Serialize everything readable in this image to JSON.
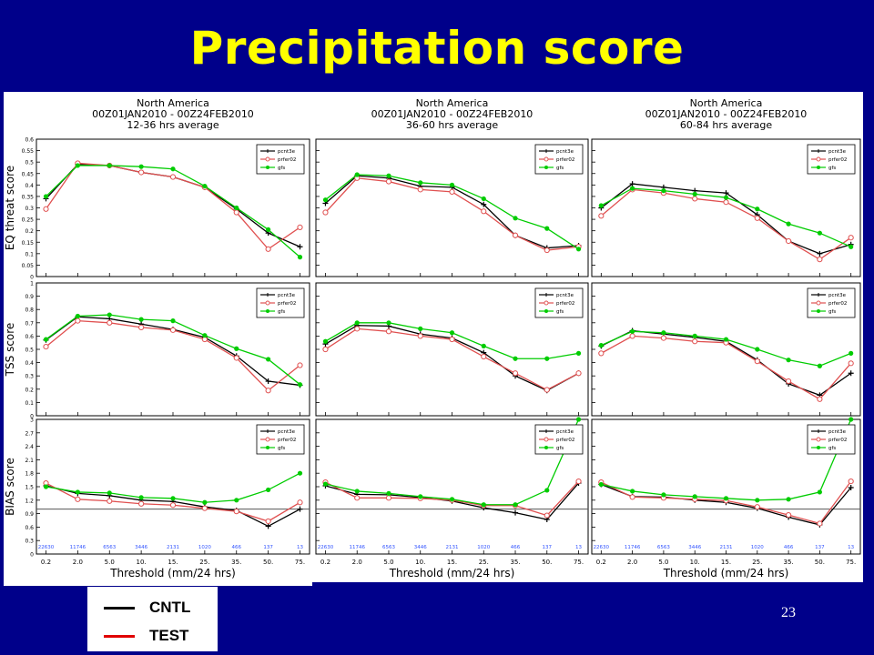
{
  "slide": {
    "title": "Precipitation score",
    "page_number": "23"
  },
  "legend_box": {
    "items": [
      {
        "label": "CNTL",
        "color": "#000000"
      },
      {
        "label": "TEST",
        "color": "#e00000"
      }
    ]
  },
  "colors": {
    "pcnt": "#000000",
    "prfer": "#e05050",
    "gfs": "#00cc00",
    "bias_reference": "#555555",
    "counts": "#3355ff"
  },
  "chart_data": {
    "type": "line",
    "x_categories": [
      "0.2",
      "2.0",
      "5.0",
      "10.",
      "15.",
      "25.",
      "35.",
      "50.",
      "75."
    ],
    "xlabel": "Threshold (mm/24 hrs)",
    "legend_placement": "top-right",
    "series_names": [
      "pcnt3e",
      "prfer02",
      "gfs"
    ],
    "counts": [
      "22630",
      "11746",
      "6563",
      "3446",
      "2131",
      "1020",
      "466",
      "137",
      "13"
    ],
    "rows": [
      {
        "ylabel": "EQ threat score",
        "ylim": [
          0,
          0.6
        ],
        "yticks": [
          "0",
          "0.05",
          "0.1",
          "0.15",
          "0.2",
          "0.25",
          "0.3",
          "0.35",
          "0.4",
          "0.45",
          "0.5",
          "0.55",
          "0.6"
        ],
        "reference_line": null
      },
      {
        "ylabel": "TSS score",
        "ylim": [
          0,
          1
        ],
        "yticks": [
          "0",
          "0.1",
          "0.2",
          "0.3",
          "0.4",
          "0.5",
          "0.6",
          "0.7",
          "0.8",
          "0.9",
          "1"
        ],
        "reference_line": null
      },
      {
        "ylabel": "BIAS score",
        "ylim": [
          0,
          3
        ],
        "yticks": [
          "0",
          "0.3",
          "0.6",
          "0.9",
          "1.2",
          "1.5",
          "1.8",
          "2.1",
          "2.4",
          "2.7",
          "3"
        ],
        "reference_line": 1
      }
    ],
    "columns": [
      {
        "title_lines": [
          "North America",
          "00Z01JAN2010 - 00Z24FEB2010",
          "12-36 hrs average"
        ],
        "rows": [
          {
            "pcnt3e": [
              0.34,
              0.49,
              0.485,
              0.455,
              0.435,
              0.39,
              0.295,
              0.19,
              0.13
            ],
            "prfer02": [
              0.295,
              0.495,
              0.485,
              0.455,
              0.435,
              0.39,
              0.28,
              0.12,
              0.215
            ],
            "gfs": [
              0.35,
              0.485,
              0.485,
              0.48,
              0.47,
              0.395,
              0.3,
              0.205,
              0.085
            ]
          },
          {
            "pcnt3e": [
              0.57,
              0.745,
              0.73,
              0.69,
              0.65,
              0.59,
              0.45,
              0.26,
              0.23
            ],
            "prfer02": [
              0.52,
              0.715,
              0.7,
              0.665,
              0.645,
              0.575,
              0.435,
              0.19,
              0.38
            ],
            "gfs": [
              0.575,
              0.75,
              0.76,
              0.725,
              0.715,
              0.605,
              0.505,
              0.425,
              0.235
            ]
          },
          {
            "pcnt3e": [
              1.52,
              1.35,
              1.3,
              1.2,
              1.17,
              1.05,
              0.97,
              0.62,
              1.0
            ],
            "prfer02": [
              1.58,
              1.22,
              1.18,
              1.12,
              1.09,
              1.02,
              0.95,
              0.73,
              1.15
            ],
            "gfs": [
              1.5,
              1.38,
              1.36,
              1.26,
              1.24,
              1.15,
              1.2,
              1.43,
              1.8
            ]
          }
        ]
      },
      {
        "title_lines": [
          "North America",
          "00Z01JAN2010 - 00Z24FEB2010",
          "36-60 hrs average"
        ],
        "rows": [
          {
            "pcnt3e": [
              0.32,
              0.44,
              0.43,
              0.395,
              0.39,
              0.315,
              0.18,
              0.125,
              0.135
            ],
            "prfer02": [
              0.28,
              0.43,
              0.415,
              0.38,
              0.37,
              0.285,
              0.18,
              0.115,
              0.13
            ],
            "gfs": [
              0.335,
              0.445,
              0.44,
              0.41,
              0.4,
              0.34,
              0.255,
              0.21,
              0.12
            ]
          },
          {
            "pcnt3e": [
              0.54,
              0.68,
              0.675,
              0.615,
              0.585,
              0.475,
              0.3,
              0.19,
              0.32
            ],
            "prfer02": [
              0.5,
              0.655,
              0.635,
              0.6,
              0.575,
              0.445,
              0.32,
              0.195,
              0.32
            ],
            "gfs": [
              0.56,
              0.7,
              0.7,
              0.655,
              0.625,
              0.525,
              0.43,
              0.43,
              0.47
            ]
          },
          {
            "pcnt3e": [
              1.52,
              1.33,
              1.32,
              1.26,
              1.18,
              1.03,
              0.92,
              0.77,
              1.58
            ],
            "prfer02": [
              1.6,
              1.25,
              1.25,
              1.24,
              1.2,
              1.08,
              1.08,
              0.86,
              1.62
            ],
            "gfs": [
              1.56,
              1.4,
              1.35,
              1.28,
              1.22,
              1.1,
              1.1,
              1.42,
              3.0
            ]
          }
        ]
      },
      {
        "title_lines": [
          "North America",
          "00Z01JAN2010 - 00Z24FEB2010",
          "60-84 hrs average"
        ],
        "rows": [
          {
            "pcnt3e": [
              0.3,
              0.405,
              0.39,
              0.375,
              0.365,
              0.27,
              0.155,
              0.1,
              0.14
            ],
            "prfer02": [
              0.265,
              0.38,
              0.365,
              0.34,
              0.325,
              0.255,
              0.155,
              0.075,
              0.17
            ],
            "gfs": [
              0.31,
              0.385,
              0.375,
              0.36,
              0.345,
              0.295,
              0.23,
              0.19,
              0.13
            ]
          },
          {
            "pcnt3e": [
              0.525,
              0.64,
              0.615,
              0.59,
              0.56,
              0.42,
              0.24,
              0.155,
              0.32
            ],
            "prfer02": [
              0.47,
              0.6,
              0.585,
              0.56,
              0.55,
              0.41,
              0.26,
              0.125,
              0.395
            ],
            "gfs": [
              0.53,
              0.635,
              0.625,
              0.6,
              0.575,
              0.5,
              0.42,
              0.375,
              0.47
            ]
          },
          {
            "pcnt3e": [
              1.55,
              1.28,
              1.27,
              1.2,
              1.15,
              1.02,
              0.82,
              0.65,
              1.48
            ],
            "prfer02": [
              1.6,
              1.27,
              1.25,
              1.22,
              1.19,
              1.05,
              0.87,
              0.68,
              1.62
            ],
            "gfs": [
              1.55,
              1.4,
              1.32,
              1.28,
              1.24,
              1.2,
              1.22,
              1.38,
              3.0
            ]
          }
        ]
      }
    ]
  }
}
